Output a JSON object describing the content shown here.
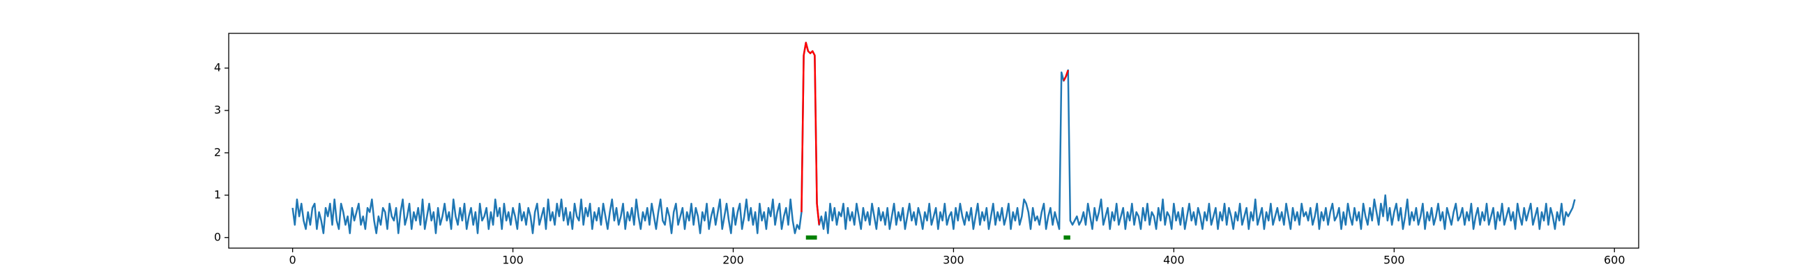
{
  "chart_data": {
    "type": "line",
    "x": [
      0,
      1,
      2,
      3,
      4,
      5,
      6,
      7,
      8,
      9,
      10,
      11,
      12,
      13,
      14,
      15,
      16,
      17,
      18,
      19,
      20,
      21,
      22,
      23,
      24,
      25,
      26,
      27,
      28,
      29,
      30,
      31,
      32,
      33,
      34,
      35,
      36,
      37,
      38,
      39,
      40,
      41,
      42,
      43,
      44,
      45,
      46,
      47,
      48,
      49,
      50,
      51,
      52,
      53,
      54,
      55,
      56,
      57,
      58,
      59,
      60,
      61,
      62,
      63,
      64,
      65,
      66,
      67,
      68,
      69,
      70,
      71,
      72,
      73,
      74,
      75,
      76,
      77,
      78,
      79,
      80,
      81,
      82,
      83,
      84,
      85,
      86,
      87,
      88,
      89,
      90,
      91,
      92,
      93,
      94,
      95,
      96,
      97,
      98,
      99,
      100,
      101,
      102,
      103,
      104,
      105,
      106,
      107,
      108,
      109,
      110,
      111,
      112,
      113,
      114,
      115,
      116,
      117,
      118,
      119,
      120,
      121,
      122,
      123,
      124,
      125,
      126,
      127,
      128,
      129,
      130,
      131,
      132,
      133,
      134,
      135,
      136,
      137,
      138,
      139,
      140,
      141,
      142,
      143,
      144,
      145,
      146,
      147,
      148,
      149,
      150,
      151,
      152,
      153,
      154,
      155,
      156,
      157,
      158,
      159,
      160,
      161,
      162,
      163,
      164,
      165,
      166,
      167,
      168,
      169,
      170,
      171,
      172,
      173,
      174,
      175,
      176,
      177,
      178,
      179,
      180,
      181,
      182,
      183,
      184,
      185,
      186,
      187,
      188,
      189,
      190,
      191,
      192,
      193,
      194,
      195,
      196,
      197,
      198,
      199,
      200,
      201,
      202,
      203,
      204,
      205,
      206,
      207,
      208,
      209,
      210,
      211,
      212,
      213,
      214,
      215,
      216,
      217,
      218,
      219,
      220,
      221,
      222,
      223,
      224,
      225,
      226,
      227,
      228,
      229,
      230,
      231,
      232,
      233,
      234,
      235,
      236,
      237,
      238,
      239,
      240,
      241,
      242,
      243,
      244,
      245,
      246,
      247,
      248,
      249,
      250,
      251,
      252,
      253,
      254,
      255,
      256,
      257,
      258,
      259,
      260,
      261,
      262,
      263,
      264,
      265,
      266,
      267,
      268,
      269,
      270,
      271,
      272,
      273,
      274,
      275,
      276,
      277,
      278,
      279,
      280,
      281,
      282,
      283,
      284,
      285,
      286,
      287,
      288,
      289,
      290,
      291,
      292,
      293,
      294,
      295,
      296,
      297,
      298,
      299,
      300,
      301,
      302,
      303,
      304,
      305,
      306,
      307,
      308,
      309,
      310,
      311,
      312,
      313,
      314,
      315,
      316,
      317,
      318,
      319,
      320,
      321,
      322,
      323,
      324,
      325,
      326,
      327,
      328,
      329,
      330,
      331,
      332,
      333,
      334,
      335,
      336,
      337,
      338,
      339,
      340,
      341,
      342,
      343,
      344,
      345,
      346,
      347,
      348,
      349,
      350,
      351,
      352,
      353,
      354,
      355,
      356,
      357,
      358,
      359,
      360,
      361,
      362,
      363,
      364,
      365,
      366,
      367,
      368,
      369,
      370,
      371,
      372,
      373,
      374,
      375,
      376,
      377,
      378,
      379,
      380,
      381,
      382,
      383,
      384,
      385,
      386,
      387,
      388,
      389,
      390,
      391,
      392,
      393,
      394,
      395,
      396,
      397,
      398,
      399,
      400,
      401,
      402,
      403,
      404,
      405,
      406,
      407,
      408,
      409,
      410,
      411,
      412,
      413,
      414,
      415,
      416,
      417,
      418,
      419,
      420,
      421,
      422,
      423,
      424,
      425,
      426,
      427,
      428,
      429,
      430,
      431,
      432,
      433,
      434,
      435,
      436,
      437,
      438,
      439,
      440,
      441,
      442,
      443,
      444,
      445,
      446,
      447,
      448,
      449,
      450,
      451,
      452,
      453,
      454,
      455,
      456,
      457,
      458,
      459,
      460,
      461,
      462,
      463,
      464,
      465,
      466,
      467,
      468,
      469,
      470,
      471,
      472,
      473,
      474,
      475,
      476,
      477,
      478,
      479,
      480,
      481,
      482,
      483,
      484,
      485,
      486,
      487,
      488,
      489,
      490,
      491,
      492,
      493,
      494,
      495,
      496,
      497,
      498,
      499,
      500,
      501,
      502,
      503,
      504,
      505,
      506,
      507,
      508,
      509,
      510,
      511,
      512,
      513,
      514,
      515,
      516,
      517,
      518,
      519,
      520,
      521,
      522,
      523,
      524,
      525,
      526,
      527,
      528,
      529,
      530,
      531,
      532,
      533,
      534,
      535,
      536,
      537,
      538,
      539,
      540,
      541,
      542,
      543,
      544,
      545,
      546,
      547,
      548,
      549,
      550,
      551,
      552,
      553,
      554,
      555,
      556,
      557,
      558,
      559,
      560,
      561,
      562,
      563,
      564,
      565,
      566,
      567,
      568,
      569,
      570,
      571,
      572,
      573,
      574,
      575,
      576,
      577,
      578,
      579,
      580,
      581,
      582
    ],
    "series": [
      {
        "color": "#1f77b4",
        "values": [
          0.7,
          0.3,
          0.9,
          0.5,
          0.8,
          0.4,
          0.2,
          0.6,
          0.3,
          0.7,
          0.8,
          0.2,
          0.6,
          0.4,
          0.1,
          0.7,
          0.5,
          0.8,
          0.3,
          0.9,
          0.4,
          0.2,
          0.8,
          0.6,
          0.3,
          0.5,
          0.1,
          0.7,
          0.4,
          0.6,
          0.8,
          0.3,
          0.5,
          0.2,
          0.7,
          0.6,
          0.9,
          0.4,
          0.1,
          0.5,
          0.3,
          0.7,
          0.6,
          0.2,
          0.8,
          0.5,
          0.4,
          0.7,
          0.1,
          0.6,
          0.9,
          0.3,
          0.5,
          0.8,
          0.2,
          0.6,
          0.4,
          0.7,
          0.3,
          0.9,
          0.2,
          0.5,
          0.8,
          0.4,
          0.6,
          0.1,
          0.7,
          0.3,
          0.5,
          0.8,
          0.4,
          0.6,
          0.2,
          0.9,
          0.5,
          0.3,
          0.7,
          0.4,
          0.8,
          0.2,
          0.5,
          0.7,
          0.3,
          0.6,
          0.1,
          0.8,
          0.4,
          0.5,
          0.7,
          0.2,
          0.6,
          0.3,
          0.9,
          0.5,
          0.7,
          0.2,
          0.8,
          0.4,
          0.6,
          0.3,
          0.7,
          0.5,
          0.2,
          0.8,
          0.4,
          0.6,
          0.3,
          0.7,
          0.5,
          0.1,
          0.6,
          0.8,
          0.3,
          0.5,
          0.7,
          0.2,
          0.9,
          0.4,
          0.6,
          0.3,
          0.8,
          0.5,
          0.9,
          0.4,
          0.7,
          0.3,
          0.6,
          0.2,
          0.8,
          0.5,
          0.4,
          0.9,
          0.3,
          0.7,
          0.5,
          0.8,
          0.2,
          0.6,
          0.4,
          0.7,
          0.3,
          0.8,
          0.5,
          0.2,
          0.6,
          0.9,
          0.4,
          0.7,
          0.3,
          0.5,
          0.8,
          0.2,
          0.6,
          0.4,
          0.7,
          0.3,
          0.9,
          0.5,
          0.2,
          0.6,
          0.4,
          0.7,
          0.3,
          0.8,
          0.5,
          0.2,
          0.6,
          0.9,
          0.4,
          0.3,
          0.7,
          0.5,
          0.1,
          0.6,
          0.8,
          0.3,
          0.5,
          0.7,
          0.2,
          0.6,
          0.4,
          0.8,
          0.3,
          0.7,
          0.5,
          0.1,
          0.6,
          0.4,
          0.8,
          0.2,
          0.5,
          0.7,
          0.3,
          0.6,
          0.9,
          0.2,
          0.5,
          0.8,
          0.4,
          0.1,
          0.7,
          0.3,
          0.6,
          0.8,
          0.2,
          0.5,
          0.9,
          0.4,
          0.7,
          0.3,
          0.6,
          0.1,
          0.8,
          0.4,
          0.6,
          0.2,
          0.7,
          0.5,
          0.9,
          0.3,
          0.6,
          0.8,
          0.2,
          0.5,
          0.7,
          0.3,
          0.9,
          0.4,
          0.1,
          0.3,
          0.2,
          0.6,
          4.3,
          4.6,
          4.4,
          4.35,
          4.4,
          4.3,
          0.8,
          0.3,
          0.5,
          0.2,
          0.6,
          0.1,
          0.8,
          0.4,
          0.7,
          0.3,
          0.6,
          0.5,
          0.8,
          0.2,
          0.7,
          0.4,
          0.6,
          0.3,
          0.8,
          0.5,
          0.2,
          0.7,
          0.4,
          0.6,
          0.3,
          0.8,
          0.5,
          0.2,
          0.7,
          0.4,
          0.6,
          0.3,
          0.7,
          0.2,
          0.5,
          0.8,
          0.3,
          0.6,
          0.4,
          0.7,
          0.2,
          0.5,
          0.8,
          0.4,
          0.6,
          0.3,
          0.7,
          0.5,
          0.2,
          0.6,
          0.4,
          0.8,
          0.3,
          0.5,
          0.7,
          0.2,
          0.6,
          0.4,
          0.8,
          0.3,
          0.5,
          0.6,
          0.2,
          0.7,
          0.4,
          0.8,
          0.5,
          0.3,
          0.6,
          0.4,
          0.7,
          0.2,
          0.5,
          0.8,
          0.3,
          0.6,
          0.4,
          0.7,
          0.2,
          0.5,
          0.8,
          0.3,
          0.6,
          0.4,
          0.7,
          0.3,
          0.5,
          0.8,
          0.2,
          0.6,
          0.4,
          0.7,
          0.3,
          0.5,
          0.9,
          0.8,
          0.6,
          0.2,
          0.7,
          0.4,
          0.5,
          0.3,
          0.6,
          0.8,
          0.2,
          0.5,
          0.7,
          0.3,
          0.6,
          0.4,
          0.2,
          3.9,
          3.7,
          3.8,
          3.95,
          0.4,
          0.3,
          0.4,
          0.5,
          0.3,
          0.4,
          0.6,
          0.3,
          0.8,
          0.5,
          0.2,
          0.7,
          0.4,
          0.6,
          0.9,
          0.3,
          0.5,
          0.7,
          0.2,
          0.6,
          0.4,
          0.8,
          0.3,
          0.5,
          0.7,
          0.2,
          0.6,
          0.4,
          0.8,
          0.3,
          0.6,
          0.5,
          0.2,
          0.7,
          0.4,
          0.8,
          0.3,
          0.6,
          0.5,
          0.2,
          0.7,
          0.4,
          0.9,
          0.3,
          0.6,
          0.5,
          0.2,
          0.8,
          0.4,
          0.6,
          0.3,
          0.7,
          0.2,
          0.5,
          0.8,
          0.4,
          0.6,
          0.3,
          0.7,
          0.5,
          0.2,
          0.6,
          0.4,
          0.8,
          0.3,
          0.5,
          0.7,
          0.2,
          0.6,
          0.4,
          0.8,
          0.3,
          0.7,
          0.5,
          0.2,
          0.6,
          0.4,
          0.8,
          0.3,
          0.5,
          0.7,
          0.2,
          0.6,
          0.4,
          0.9,
          0.3,
          0.5,
          0.7,
          0.2,
          0.6,
          0.4,
          0.8,
          0.3,
          0.5,
          0.7,
          0.4,
          0.6,
          0.3,
          0.8,
          0.5,
          0.2,
          0.7,
          0.4,
          0.6,
          0.3,
          0.8,
          0.5,
          0.6,
          0.4,
          0.7,
          0.3,
          0.5,
          0.8,
          0.2,
          0.6,
          0.4,
          0.7,
          0.3,
          0.6,
          0.8,
          0.4,
          0.5,
          0.7,
          0.2,
          0.6,
          0.3,
          0.8,
          0.5,
          0.3,
          0.7,
          0.4,
          0.6,
          0.2,
          0.8,
          0.5,
          0.3,
          0.7,
          0.4,
          0.9,
          0.6,
          0.3,
          0.8,
          0.5,
          1.0,
          0.4,
          0.7,
          0.3,
          0.6,
          0.8,
          0.4,
          0.7,
          0.2,
          0.5,
          0.9,
          0.3,
          0.6,
          0.4,
          0.7,
          0.3,
          0.5,
          0.8,
          0.2,
          0.6,
          0.4,
          0.7,
          0.3,
          0.5,
          0.8,
          0.4,
          0.6,
          0.2,
          0.7,
          0.5,
          0.3,
          0.6,
          0.8,
          0.4,
          0.5,
          0.7,
          0.3,
          0.6,
          0.4,
          0.8,
          0.2,
          0.5,
          0.7,
          0.3,
          0.6,
          0.4,
          0.8,
          0.3,
          0.5,
          0.7,
          0.2,
          0.6,
          0.4,
          0.8,
          0.3,
          0.5,
          0.7,
          0.4,
          0.6,
          0.2,
          0.8,
          0.5,
          0.3,
          0.7,
          0.4,
          0.6,
          0.8,
          0.3,
          0.5,
          0.7,
          0.2,
          0.6,
          0.4,
          0.8,
          0.3,
          0.7,
          0.5,
          0.2,
          0.6,
          0.4,
          0.8,
          0.3,
          0.6,
          0.5,
          0.6,
          0.7,
          0.9
        ]
      },
      {
        "color": "#ff0000",
        "x": [
          231,
          232,
          233,
          234,
          235,
          236,
          237,
          238,
          239,
          349,
          350,
          351,
          352
        ],
        "values": [
          0.6,
          4.3,
          4.6,
          4.4,
          4.35,
          4.4,
          4.3,
          0.8,
          0.3,
          null,
          3.7,
          3.8,
          3.95
        ]
      },
      {
        "color": "#008000",
        "x": [
          233,
          234,
          235,
          236,
          237,
          238,
          null,
          350,
          351,
          352,
          353
        ],
        "values": [
          0,
          0,
          0,
          0,
          0,
          0,
          null,
          0,
          0,
          0,
          0
        ]
      }
    ],
    "xlim": [
      -29,
      611
    ],
    "xticks": [
      0,
      100,
      200,
      300,
      400,
      500,
      600
    ],
    "ylim": [
      -0.25,
      4.82
    ],
    "yticks": [
      0,
      1,
      2,
      3,
      4
    ]
  }
}
